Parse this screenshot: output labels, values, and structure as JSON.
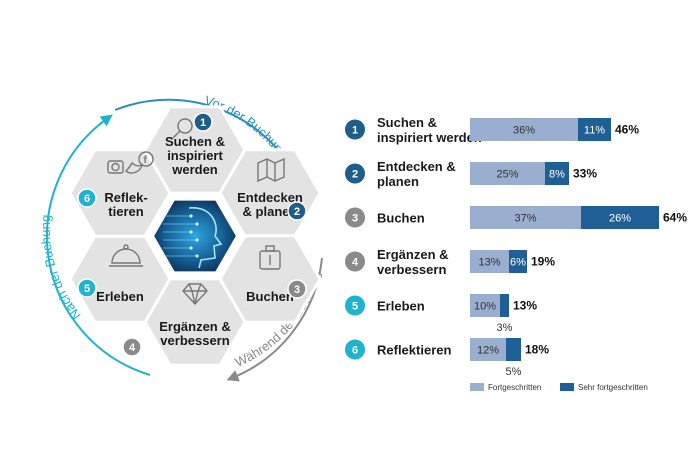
{
  "wheel": {
    "arcs": {
      "before": "Vor der Buchung",
      "during": "Während der Buchung",
      "after": "Nach der Buchung"
    },
    "colors": {
      "blue": "#2a8fbf",
      "gray": "#8a8a8a",
      "teal": "#1fb3cf",
      "hex": "#e3e3e3",
      "badge": "#1e5d8c"
    },
    "hexagons": [
      {
        "num": "1",
        "lines": [
          "Suchen &",
          "inspiriert",
          "werden"
        ],
        "icon": "magnifier-icon",
        "badge_color": "#1e5d8c"
      },
      {
        "num": "2",
        "lines": [
          "Entdecken",
          "& planen"
        ],
        "icon": "map-icon",
        "badge_color": "#1e5d8c"
      },
      {
        "num": "3",
        "lines": [
          "Buchen"
        ],
        "icon": "luggage-icon",
        "badge_color": "#8a8a8a"
      },
      {
        "num": "4",
        "lines": [
          "Ergänzen &",
          "verbessern"
        ],
        "icon": "diamond-icon",
        "badge_color": "#8a8a8a"
      },
      {
        "num": "5",
        "lines": [
          "Erleben"
        ],
        "icon": "cloche-icon",
        "badge_color": "#1fb3cf"
      },
      {
        "num": "6",
        "lines": [
          "Reflek-",
          "tieren"
        ],
        "icon": "social-icon",
        "badge_color": "#1fb3cf"
      }
    ],
    "center_icon": "ai-head-icon"
  },
  "chart_data": {
    "type": "bar",
    "orientation": "horizontal-stacked",
    "categories": [
      {
        "num": "1",
        "lines": [
          "Suchen &",
          "inspiriert werden"
        ],
        "badge_color": "#1e5d8c"
      },
      {
        "num": "2",
        "lines": [
          "Entdecken &",
          "planen"
        ],
        "badge_color": "#1e5d8c"
      },
      {
        "num": "3",
        "lines": [
          "Buchen"
        ],
        "badge_color": "#8a8a8a"
      },
      {
        "num": "4",
        "lines": [
          "Ergänzen &",
          "verbessern"
        ],
        "badge_color": "#8a8a8a"
      },
      {
        "num": "5",
        "lines": [
          "Erleben"
        ],
        "badge_color": "#1fb3cf"
      },
      {
        "num": "6",
        "lines": [
          "Reflektieren"
        ],
        "badge_color": "#1fb3cf"
      }
    ],
    "series": [
      {
        "name": "Fortgeschritten",
        "color": "#9aaed0",
        "values": [
          36,
          25,
          37,
          13,
          10,
          12
        ],
        "labels": [
          "36%",
          "25%",
          "37%",
          "13%",
          "10%",
          "12%"
        ]
      },
      {
        "name": "Sehr fortgeschritten",
        "color": "#1f5f95",
        "values": [
          11,
          8,
          26,
          6,
          3,
          5
        ],
        "labels": [
          "11%",
          "8%",
          "26%",
          "6%",
          "3%",
          "5%"
        ]
      }
    ],
    "totals": [
      "46%",
      "33%",
      "64%",
      "19%",
      "13%",
      "18%"
    ],
    "xlim": [
      0,
      64
    ],
    "legend_position": "bottom"
  }
}
